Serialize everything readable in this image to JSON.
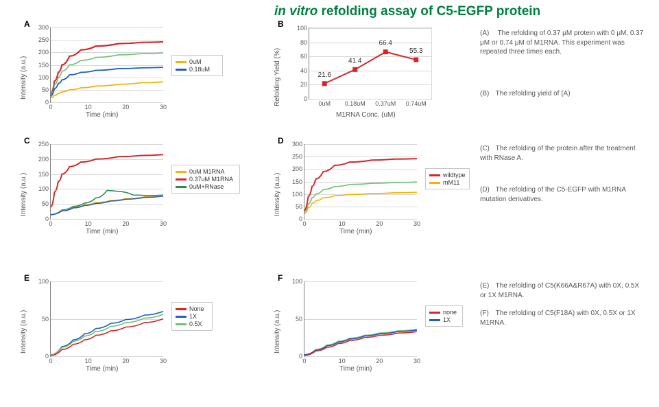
{
  "title_italic": "in vitro",
  "title_rest": " refolding assay of C5-EGFP protein",
  "colors": {
    "yellow": "#f4b400",
    "blue": "#1f5fbf",
    "red": "#d62728",
    "green": "#2e8b57",
    "light_green": "#6fbf73",
    "axis": "#808080",
    "grid": "#d8d8d8",
    "text": "#555555"
  },
  "panels": {
    "A": {
      "label": "A",
      "xlabel": "Time (min)",
      "ylabel": "Intensity (a.u.)",
      "xlim": [
        0,
        30
      ],
      "xticks": [
        0,
        10,
        20,
        30
      ],
      "ylim": [
        0,
        300
      ],
      "yticks": [
        0,
        50,
        100,
        150,
        200,
        250,
        300
      ],
      "legend": [
        {
          "name": "0uM",
          "color": "#f4b400"
        },
        {
          "name": "0.18uM",
          "color": "#1f5fbf"
        }
      ],
      "series": [
        {
          "name": "red",
          "color": "#d62728",
          "width": 2.2,
          "data": [
            [
              0,
              35
            ],
            [
              1,
              85
            ],
            [
              2,
              120
            ],
            [
              3,
              150
            ],
            [
              5,
              185
            ],
            [
              8,
              210
            ],
            [
              12,
              225
            ],
            [
              18,
              235
            ],
            [
              24,
              240
            ],
            [
              30,
              242
            ]
          ]
        },
        {
          "name": "green",
          "color": "#6fbf73",
          "width": 1.6,
          "data": [
            [
              0,
              30
            ],
            [
              1,
              70
            ],
            [
              2,
              100
            ],
            [
              3,
              125
            ],
            [
              5,
              150
            ],
            [
              8,
              168
            ],
            [
              12,
              180
            ],
            [
              18,
              190
            ],
            [
              24,
              195
            ],
            [
              30,
              198
            ]
          ]
        },
        {
          "name": "blue",
          "color": "#1f5fbf",
          "width": 1.8,
          "data": [
            [
              0,
              25
            ],
            [
              1,
              55
            ],
            [
              2,
              75
            ],
            [
              3,
              90
            ],
            [
              5,
              110
            ],
            [
              8,
              120
            ],
            [
              12,
              128
            ],
            [
              18,
              135
            ],
            [
              24,
              138
            ],
            [
              30,
              140
            ]
          ]
        },
        {
          "name": "yellow",
          "color": "#f4b400",
          "width": 1.8,
          "data": [
            [
              0,
              18
            ],
            [
              1,
              28
            ],
            [
              2,
              36
            ],
            [
              3,
              42
            ],
            [
              5,
              50
            ],
            [
              8,
              58
            ],
            [
              12,
              65
            ],
            [
              18,
              72
            ],
            [
              24,
              78
            ],
            [
              30,
              82
            ]
          ]
        }
      ]
    },
    "B": {
      "label": "B",
      "xlabel": "M1RNA Conc. (uM)",
      "ylabel": "Refolding Yield (%)",
      "ylim": [
        0,
        100
      ],
      "yticks": [
        0,
        20,
        40,
        60,
        80,
        100
      ],
      "categories": [
        "0uM",
        "0.18uM",
        "0.37uM",
        "0.74uM"
      ],
      "values": [
        21.6,
        41.4,
        66.4,
        55.3
      ],
      "point_labels": [
        "21.6",
        "41.4",
        "66.4",
        "55.3"
      ],
      "color": "#d62728",
      "marker": "square",
      "marker_size": 7,
      "line_width": 2
    },
    "C": {
      "label": "C",
      "xlabel": "Time (min)",
      "ylabel": "Intensity (a.u.)",
      "xlim": [
        0,
        30
      ],
      "xticks": [
        0,
        10,
        20,
        30
      ],
      "ylim": [
        0,
        250
      ],
      "yticks": [
        0,
        50,
        100,
        150,
        200,
        250
      ],
      "legend": [
        {
          "name": "0uM M1RNA",
          "color": "#f4b400"
        },
        {
          "name": "0.37uM M1RNA",
          "color": "#d62728"
        },
        {
          "name": "0uM+RNase",
          "color": "#2e8b57"
        }
      ],
      "series": [
        {
          "name": "red",
          "color": "#d62728",
          "width": 2,
          "data": [
            [
              0,
              40
            ],
            [
              1,
              90
            ],
            [
              2,
              125
            ],
            [
              3,
              150
            ],
            [
              5,
              175
            ],
            [
              8,
              190
            ],
            [
              12,
              200
            ],
            [
              18,
              208
            ],
            [
              24,
              212
            ],
            [
              30,
              215
            ]
          ]
        },
        {
          "name": "green",
          "color": "#2e8b57",
          "width": 1.6,
          "data": [
            [
              0,
              15
            ],
            [
              3,
              30
            ],
            [
              6,
              42
            ],
            [
              9,
              53
            ],
            [
              12,
              70
            ],
            [
              15,
              95
            ],
            [
              18,
              92
            ],
            [
              22,
              80
            ],
            [
              26,
              78
            ],
            [
              30,
              80
            ]
          ]
        },
        {
          "name": "yellow",
          "color": "#f4b400",
          "width": 1.6,
          "data": [
            [
              0,
              15
            ],
            [
              3,
              28
            ],
            [
              6,
              38
            ],
            [
              9,
              47
            ],
            [
              12,
              55
            ],
            [
              16,
              62
            ],
            [
              20,
              68
            ],
            [
              25,
              74
            ],
            [
              30,
              78
            ]
          ]
        },
        {
          "name": "blue",
          "color": "#1f5fbf",
          "width": 1.6,
          "data": [
            [
              0,
              14
            ],
            [
              3,
              27
            ],
            [
              6,
              37
            ],
            [
              9,
              45
            ],
            [
              12,
              52
            ],
            [
              16,
              60
            ],
            [
              20,
              66
            ],
            [
              25,
              72
            ],
            [
              30,
              76
            ]
          ]
        }
      ]
    },
    "D": {
      "label": "D",
      "xlabel": "Time (min)",
      "ylabel": "Intensity (a.u.)",
      "xlim": [
        0,
        30
      ],
      "xticks": [
        0,
        10,
        20,
        30
      ],
      "ylim": [
        0,
        300
      ],
      "yticks": [
        0,
        50,
        100,
        150,
        200,
        250,
        300
      ],
      "legend": [
        {
          "name": "wildtype",
          "color": "#d62728"
        },
        {
          "name": "mM11",
          "color": "#f4b400"
        }
      ],
      "series": [
        {
          "name": "red",
          "color": "#d62728",
          "width": 2,
          "data": [
            [
              0,
              35
            ],
            [
              1,
              90
            ],
            [
              2,
              130
            ],
            [
              3,
              160
            ],
            [
              5,
              190
            ],
            [
              8,
              215
            ],
            [
              12,
              228
            ],
            [
              18,
              236
            ],
            [
              24,
              240
            ],
            [
              30,
              242
            ]
          ]
        },
        {
          "name": "green",
          "color": "#6fbf73",
          "width": 1.6,
          "data": [
            [
              0,
              28
            ],
            [
              1,
              60
            ],
            [
              2,
              85
            ],
            [
              3,
              100
            ],
            [
              5,
              118
            ],
            [
              8,
              130
            ],
            [
              12,
              138
            ],
            [
              18,
              143
            ],
            [
              24,
              146
            ],
            [
              30,
              148
            ]
          ]
        },
        {
          "name": "yellow",
          "color": "#f4b400",
          "width": 1.6,
          "data": [
            [
              0,
              22
            ],
            [
              1,
              45
            ],
            [
              2,
              62
            ],
            [
              3,
              73
            ],
            [
              5,
              85
            ],
            [
              8,
              93
            ],
            [
              12,
              98
            ],
            [
              18,
              102
            ],
            [
              24,
              105
            ],
            [
              30,
              107
            ]
          ]
        }
      ]
    },
    "E": {
      "label": "E",
      "xlabel": "Time (min)",
      "ylabel": "Intensity (a.u.)",
      "xlim": [
        0,
        30
      ],
      "xticks": [
        0,
        10,
        20,
        30
      ],
      "ylim": [
        0,
        100
      ],
      "yticks": [
        0,
        50,
        100
      ],
      "legend": [
        {
          "name": "None",
          "color": "#d62728"
        },
        {
          "name": "1X",
          "color": "#1f5fbf"
        },
        {
          "name": "0.5X",
          "color": "#6fbf73"
        }
      ],
      "series": [
        {
          "name": "blue",
          "color": "#1f5fbf",
          "width": 1.6,
          "data": [
            [
              0,
              2
            ],
            [
              3,
              13
            ],
            [
              6,
              22
            ],
            [
              9,
              30
            ],
            [
              12,
              37
            ],
            [
              16,
              44
            ],
            [
              20,
              49
            ],
            [
              25,
              55
            ],
            [
              30,
              60
            ]
          ]
        },
        {
          "name": "green",
          "color": "#6fbf73",
          "width": 1.6,
          "data": [
            [
              0,
              2
            ],
            [
              3,
              12
            ],
            [
              6,
              20
            ],
            [
              9,
              27
            ],
            [
              12,
              33
            ],
            [
              16,
              40
            ],
            [
              20,
              45
            ],
            [
              25,
              51
            ],
            [
              30,
              56
            ]
          ]
        },
        {
          "name": "red",
          "color": "#d62728",
          "width": 1.6,
          "data": [
            [
              0,
              1
            ],
            [
              3,
              9
            ],
            [
              6,
              16
            ],
            [
              9,
              22
            ],
            [
              12,
              28
            ],
            [
              16,
              34
            ],
            [
              20,
              39
            ],
            [
              25,
              45
            ],
            [
              30,
              50
            ]
          ]
        }
      ]
    },
    "F": {
      "label": "F",
      "xlabel": "Time (min)",
      "ylabel": "Intensity (a.u.)",
      "xlim": [
        0,
        30
      ],
      "xticks": [
        0,
        10,
        20,
        30
      ],
      "ylim": [
        0,
        100
      ],
      "yticks": [
        0,
        50,
        100
      ],
      "legend": [
        {
          "name": "none",
          "color": "#d62728"
        },
        {
          "name": "1X",
          "color": "#1f5fbf"
        }
      ],
      "series": [
        {
          "name": "green",
          "color": "#6fbf73",
          "width": 1.6,
          "data": [
            [
              0,
              2
            ],
            [
              3,
              9
            ],
            [
              6,
              15
            ],
            [
              9,
              20
            ],
            [
              12,
              24
            ],
            [
              16,
              28
            ],
            [
              20,
              31
            ],
            [
              25,
              34
            ],
            [
              30,
              36
            ]
          ]
        },
        {
          "name": "blue",
          "color": "#1f5fbf",
          "width": 1.6,
          "data": [
            [
              0,
              2
            ],
            [
              3,
              8
            ],
            [
              6,
              14
            ],
            [
              9,
              19
            ],
            [
              12,
              23
            ],
            [
              16,
              27
            ],
            [
              20,
              30
            ],
            [
              25,
              33
            ],
            [
              30,
              35
            ]
          ]
        },
        {
          "name": "red",
          "color": "#d62728",
          "width": 1.6,
          "data": [
            [
              0,
              1
            ],
            [
              3,
              7
            ],
            [
              6,
              12
            ],
            [
              9,
              17
            ],
            [
              12,
              21
            ],
            [
              16,
              25
            ],
            [
              20,
              28
            ],
            [
              25,
              31
            ],
            [
              30,
              33
            ]
          ]
        }
      ]
    }
  },
  "captions": {
    "A": "The refolding of 0.37 μM protein with 0 μM, 0.37 μM or 0.74  μM of M1RNA. This experiment was repeated three times each.",
    "B": "The refolding yield of (A)",
    "C": "The refolding of the protein after the treatment with RNase A.",
    "D": "The refolding of the C5-EGFP with M1RNA mutation derivatives.",
    "E": "The refolding of C5(K66A&R67A) with 0X, 0.5X or 1X M1RNA.",
    "F": "The refolding of C5(F18A) with 0X, 0.5X or 1X M1RNA."
  }
}
